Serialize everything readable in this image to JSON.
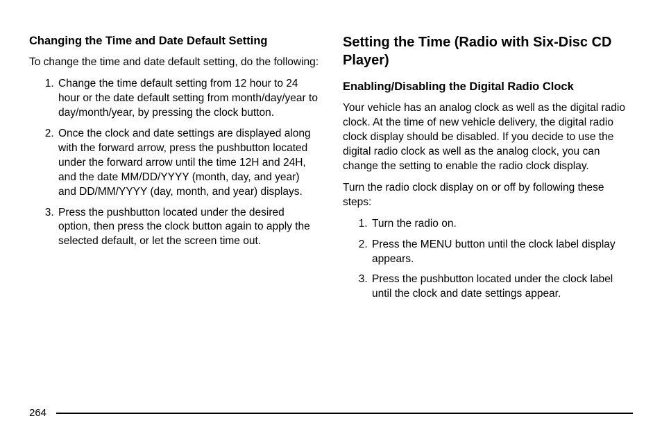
{
  "left": {
    "subheading": "Changing the Time and Date Default Setting",
    "intro": "To change the time and date default setting, do the following:",
    "steps": [
      "Change the time default setting from 12 hour to 24 hour or the date default setting from month/day/year to day/month/year, by pressing the clock button.",
      "Once the clock and date settings are displayed along with the forward arrow, press the pushbutton located under the forward arrow until the time 12H and 24H, and the date MM/DD/YYYY (month, day, and year) and DD/MM/YYYY (day, month, and year) displays.",
      "Press the pushbutton located under the desired option, then press the clock button again to apply the selected default, or let the screen time out."
    ]
  },
  "right": {
    "heading": "Setting the Time (Radio with Six-Disc CD Player)",
    "subheading": "Enabling/Disabling the Digital Radio Clock",
    "para1": "Your vehicle has an analog clock as well as the digital radio clock. At the time of new vehicle delivery, the digital radio clock display should be disabled. If you decide to use the digital radio clock as well as the analog clock, you can change the setting to enable the radio clock display.",
    "para2": "Turn the radio clock display on or off by following these steps:",
    "steps": [
      "Turn the radio on.",
      "Press the MENU button until the clock label display appears.",
      "Press the pushbutton located under the clock label until the clock and date settings appear."
    ]
  },
  "pageNumber": "264"
}
